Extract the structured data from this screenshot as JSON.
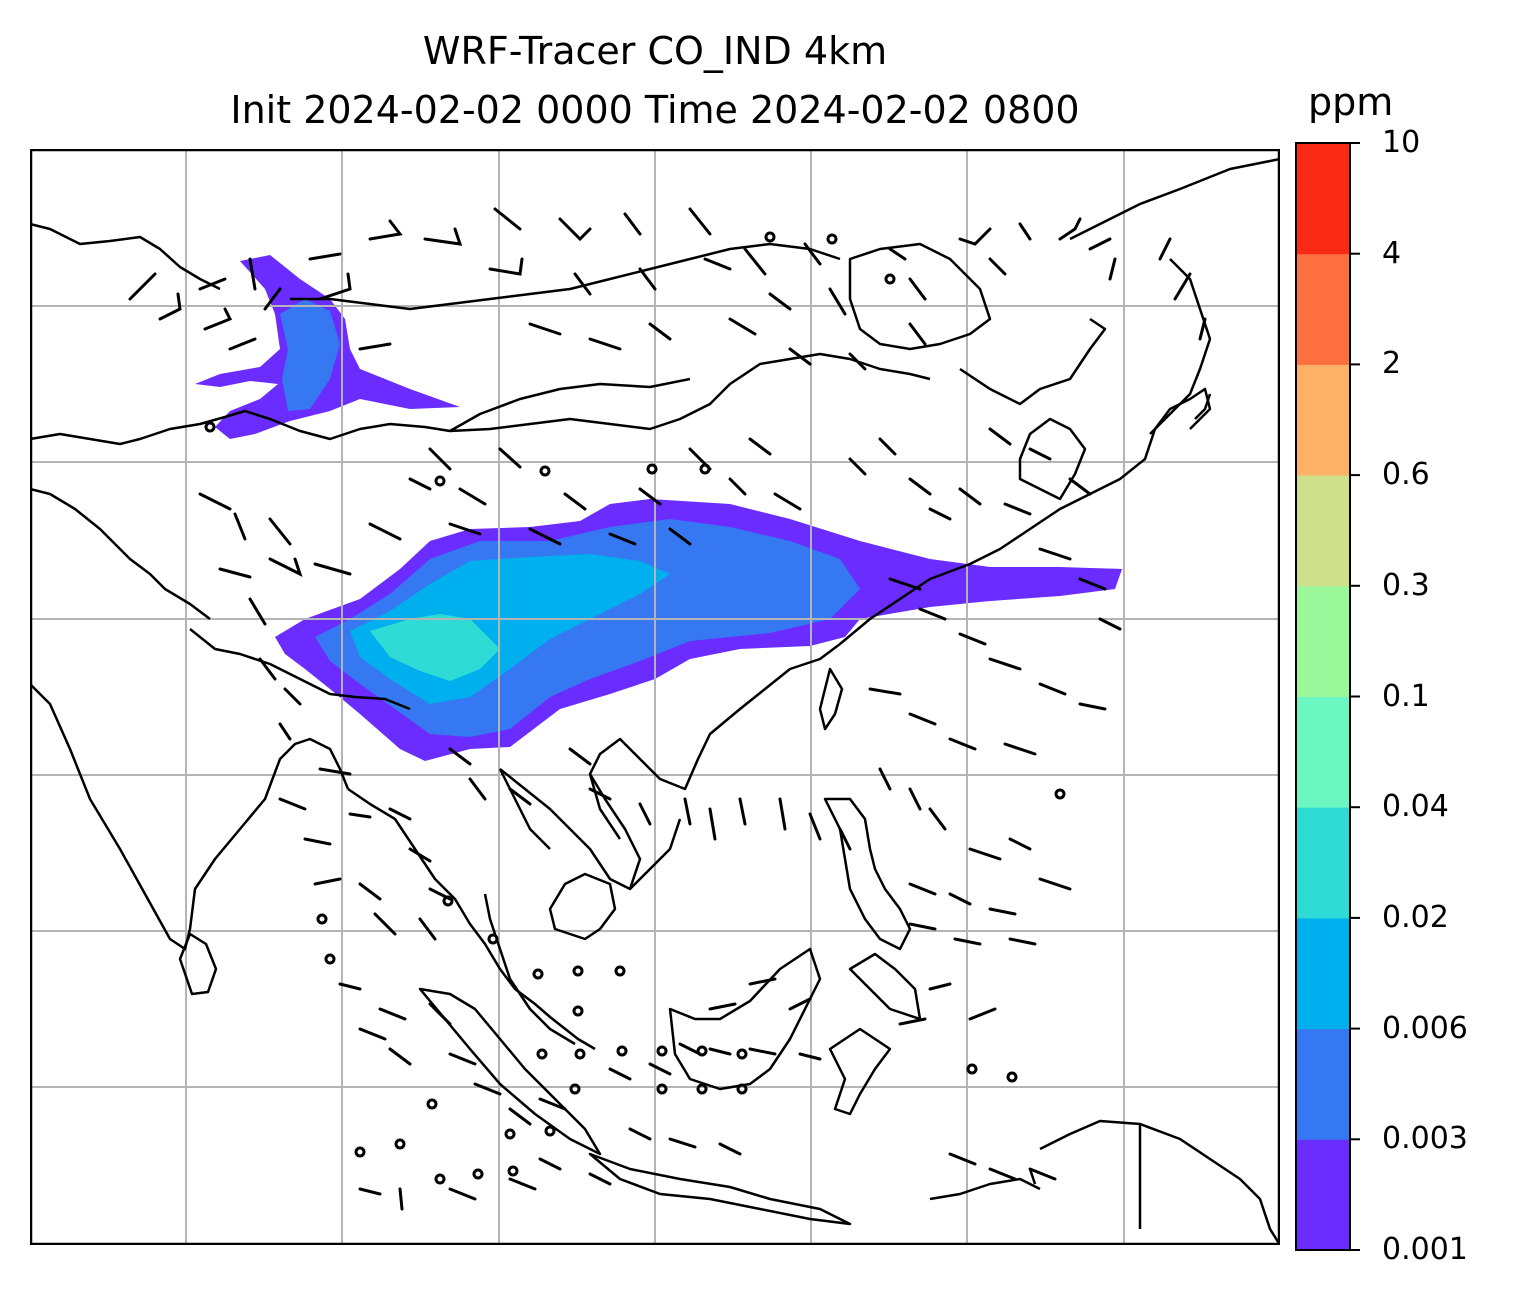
{
  "figure": {
    "title_line1": "WRF-Tracer CO_IND 4km",
    "title_line2": "Init 2024-02-02 0000 Time 2024-02-02 0800"
  },
  "colorbar": {
    "unit": "ppm",
    "levels": [
      "0.001",
      "0.003",
      "0.006",
      "0.02",
      "0.04",
      "0.1",
      "0.3",
      "0.6",
      "2",
      "4",
      "10"
    ],
    "colors": [
      "#6a2cff",
      "#3578f2",
      "#00b0ee",
      "#2fdcd5",
      "#6af7c1",
      "#9af79a",
      "#cfe08b",
      "#fcb166",
      "#fd6f3f",
      "#fa2a17"
    ]
  },
  "map": {
    "projection": "WRF Lambert (South/East Asia domain)",
    "gridlines": true,
    "overlays": [
      "coastlines",
      "country-borders",
      "wind-barbs"
    ],
    "wind_barb_color": "#000000",
    "gridline_color": "#b4b4b4"
  }
}
